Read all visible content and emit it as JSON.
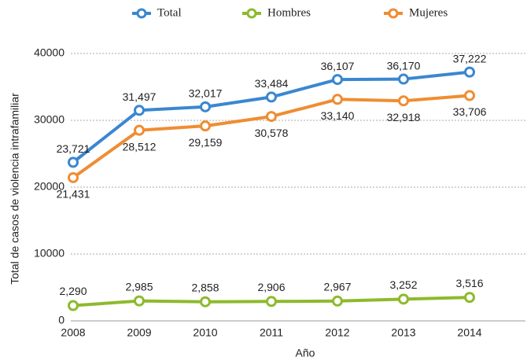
{
  "chart_data": {
    "type": "line",
    "x_label": "Año",
    "y_label": "Total de casos de violencia intrafamiliar",
    "categories": [
      "2008",
      "2009",
      "2010",
      "2011",
      "2012",
      "2013",
      "2014"
    ],
    "series": [
      {
        "name": "Total",
        "color": "#3a87d0",
        "values": [
          23721,
          31497,
          32017,
          33484,
          36107,
          36170,
          37222
        ],
        "value_labels": [
          "23,721",
          "31,497",
          "32,017",
          "33,484",
          "36,107",
          "36,170",
          "37,222"
        ]
      },
      {
        "name": "Hombres",
        "color": "#8dba2d",
        "values": [
          2290,
          2985,
          2858,
          2906,
          2967,
          3252,
          3516
        ],
        "value_labels": [
          "2,290",
          "2,985",
          "2,858",
          "2,906",
          "2,967",
          "3,252",
          "3,516"
        ]
      },
      {
        "name": "Mujeres",
        "color": "#ef8d32",
        "values": [
          21431,
          28512,
          29159,
          30578,
          33140,
          32918,
          33706
        ],
        "value_labels": [
          "21,431",
          "28,512",
          "29,159",
          "30,578",
          "33,140",
          "32,918",
          "33,706"
        ]
      }
    ],
    "ylim": [
      0,
      40000
    ],
    "yticks": [
      0,
      10000,
      20000,
      30000,
      40000
    ],
    "grid": true,
    "legend": "top"
  }
}
